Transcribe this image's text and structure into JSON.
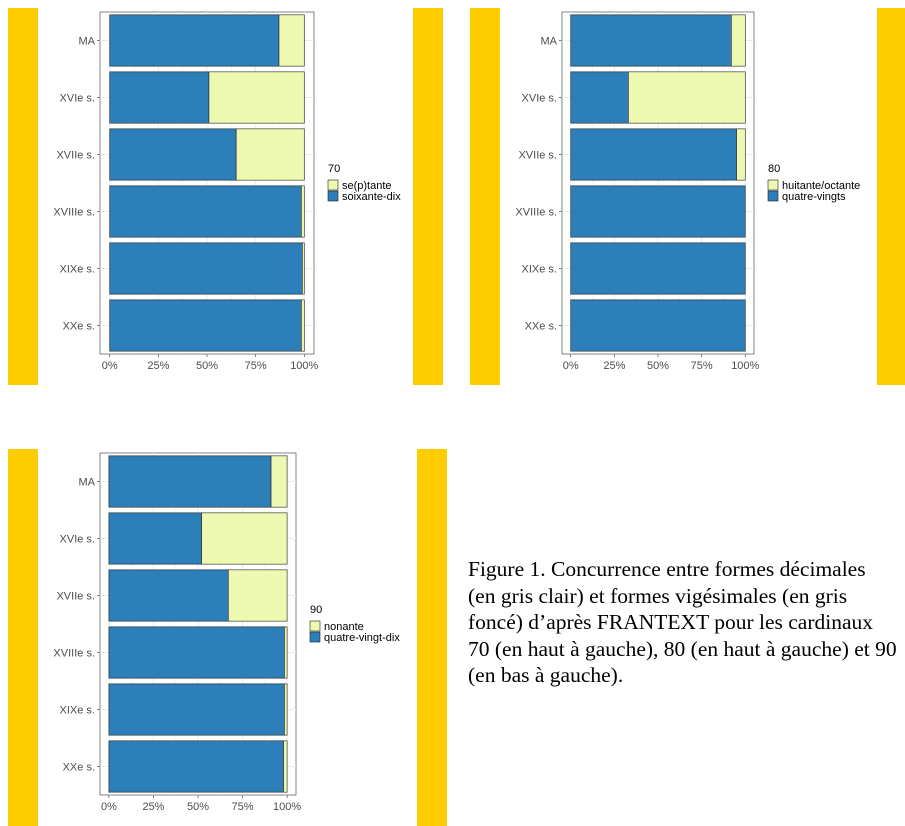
{
  "colors": {
    "decimal": "#edf8b1",
    "vigesimal": "#2c7fb8",
    "accent": "#ffcc00",
    "grid": "#ebebeb",
    "panel_border": "#333333"
  },
  "chart_data": [
    {
      "type": "bar",
      "orientation": "horizontal",
      "stacked": "percent",
      "categories": [
        "MA",
        "XVIe s.",
        "XVIIe s.",
        "XVIIIe s.",
        "XIXe s.",
        "XXe s."
      ],
      "series": [
        {
          "name": "se(p)tante",
          "values": [
            13,
            49,
            35,
            1.5,
            1,
            1.5
          ]
        },
        {
          "name": "soixante-dix",
          "values": [
            87,
            51,
            65,
            98.5,
            99,
            98.5
          ]
        }
      ],
      "legend_title": "70",
      "xticks": [
        "0%",
        "25%",
        "50%",
        "75%",
        "100%"
      ],
      "xlim": [
        0,
        100
      ],
      "grid": true,
      "legend_position": "right"
    },
    {
      "type": "bar",
      "orientation": "horizontal",
      "stacked": "percent",
      "categories": [
        "MA",
        "XVIe s.",
        "XVIIe s.",
        "XVIIIe s.",
        "XIXe s.",
        "XXe s."
      ],
      "series": [
        {
          "name": "huitante/octante",
          "values": [
            8,
            67,
            5,
            0,
            0,
            0
          ]
        },
        {
          "name": "quatre-vingts",
          "values": [
            92,
            33,
            95,
            100,
            100,
            100
          ]
        }
      ],
      "legend_title": "80",
      "xticks": [
        "0%",
        "25%",
        "50%",
        "75%",
        "100%"
      ],
      "xlim": [
        0,
        100
      ],
      "grid": true,
      "legend_position": "right"
    },
    {
      "type": "bar",
      "orientation": "horizontal",
      "stacked": "percent",
      "categories": [
        "MA",
        "XVIe s.",
        "XVIIe s.",
        "XVIIIe s.",
        "XIXe s.",
        "XXe s."
      ],
      "series": [
        {
          "name": "nonante",
          "values": [
            9,
            48,
            33,
            1.5,
            1.5,
            2
          ]
        },
        {
          "name": "quatre-vingt-dix",
          "values": [
            91,
            52,
            67,
            98.5,
            98.5,
            98
          ]
        }
      ],
      "legend_title": "90",
      "xticks": [
        "0%",
        "25%",
        "50%",
        "75%",
        "100%"
      ],
      "xlim": [
        0,
        100
      ],
      "grid": true,
      "legend_position": "right"
    }
  ],
  "caption": "Figure 1. Concurrence entre formes décimales (en gris clair) et formes vigésimales (en gris foncé) d’après FRANTEXT pour les cardinaux 70 (en haut à gauche), 80 (en haut à gauche) et 90 (en bas à gauche)."
}
